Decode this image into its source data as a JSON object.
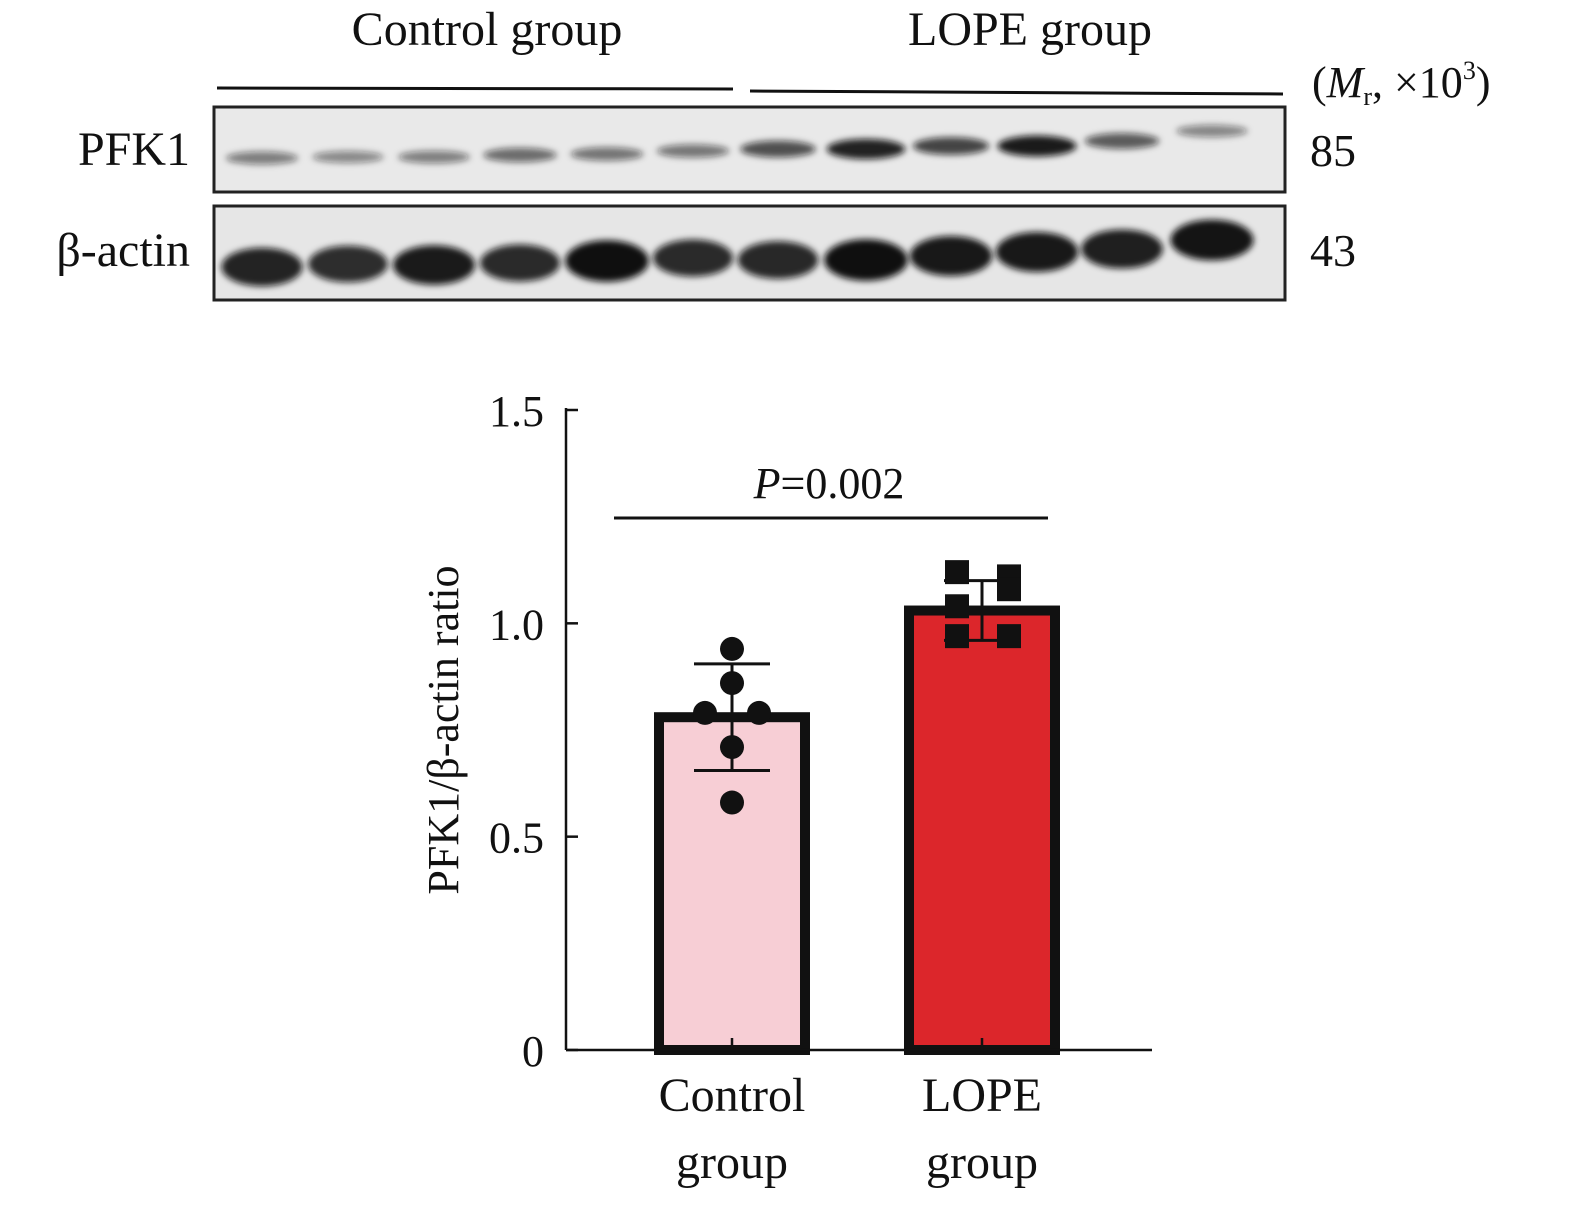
{
  "blot": {
    "group_labels": [
      "Control group",
      "LOPE group"
    ],
    "mr_label_prefix": "(",
    "mr_label_M": "M",
    "mr_label_sub": "r",
    "mr_label_rest": ", ×10",
    "mr_label_sup": "3",
    "mr_label_close": ")",
    "rows": [
      {
        "label": "PFK1",
        "mw": "85",
        "band_intensity": [
          0.35,
          0.28,
          0.33,
          0.45,
          0.4,
          0.38,
          0.62,
          0.88,
          0.68,
          0.92,
          0.55,
          0.3
        ]
      },
      {
        "label": "β-actin",
        "mw": "43",
        "band_intensity": [
          0.85,
          0.78,
          0.9,
          0.8,
          0.98,
          0.8,
          0.82,
          0.98,
          0.92,
          0.92,
          0.88,
          0.95
        ]
      }
    ]
  },
  "chart_data": {
    "type": "bar",
    "categories": [
      "Control group",
      "LOPE group"
    ],
    "tick_labels": [
      [
        "Control",
        "group"
      ],
      [
        "LOPE",
        "group"
      ]
    ],
    "values": [
      0.78,
      1.03
    ],
    "error": [
      0.125,
      0.07
    ],
    "points": [
      [
        0.94,
        0.86,
        0.79,
        0.79,
        0.71,
        0.58
      ],
      [
        1.12,
        1.11,
        1.08,
        1.04,
        0.97,
        0.97
      ]
    ],
    "ylabel": "PFK1/β-actin ratio",
    "ylim": [
      0,
      1.5
    ],
    "yticks": [
      0,
      0.5,
      1.0,
      1.5
    ],
    "ytick_labels": [
      "0",
      "0.5",
      "1.0",
      "1.5"
    ],
    "significance": {
      "prefix": "P",
      "text": "=0.002"
    },
    "colors": {
      "Control group": "#f7ced5",
      "LOPE group": "#dc262b",
      "outline": "#111111"
    }
  }
}
